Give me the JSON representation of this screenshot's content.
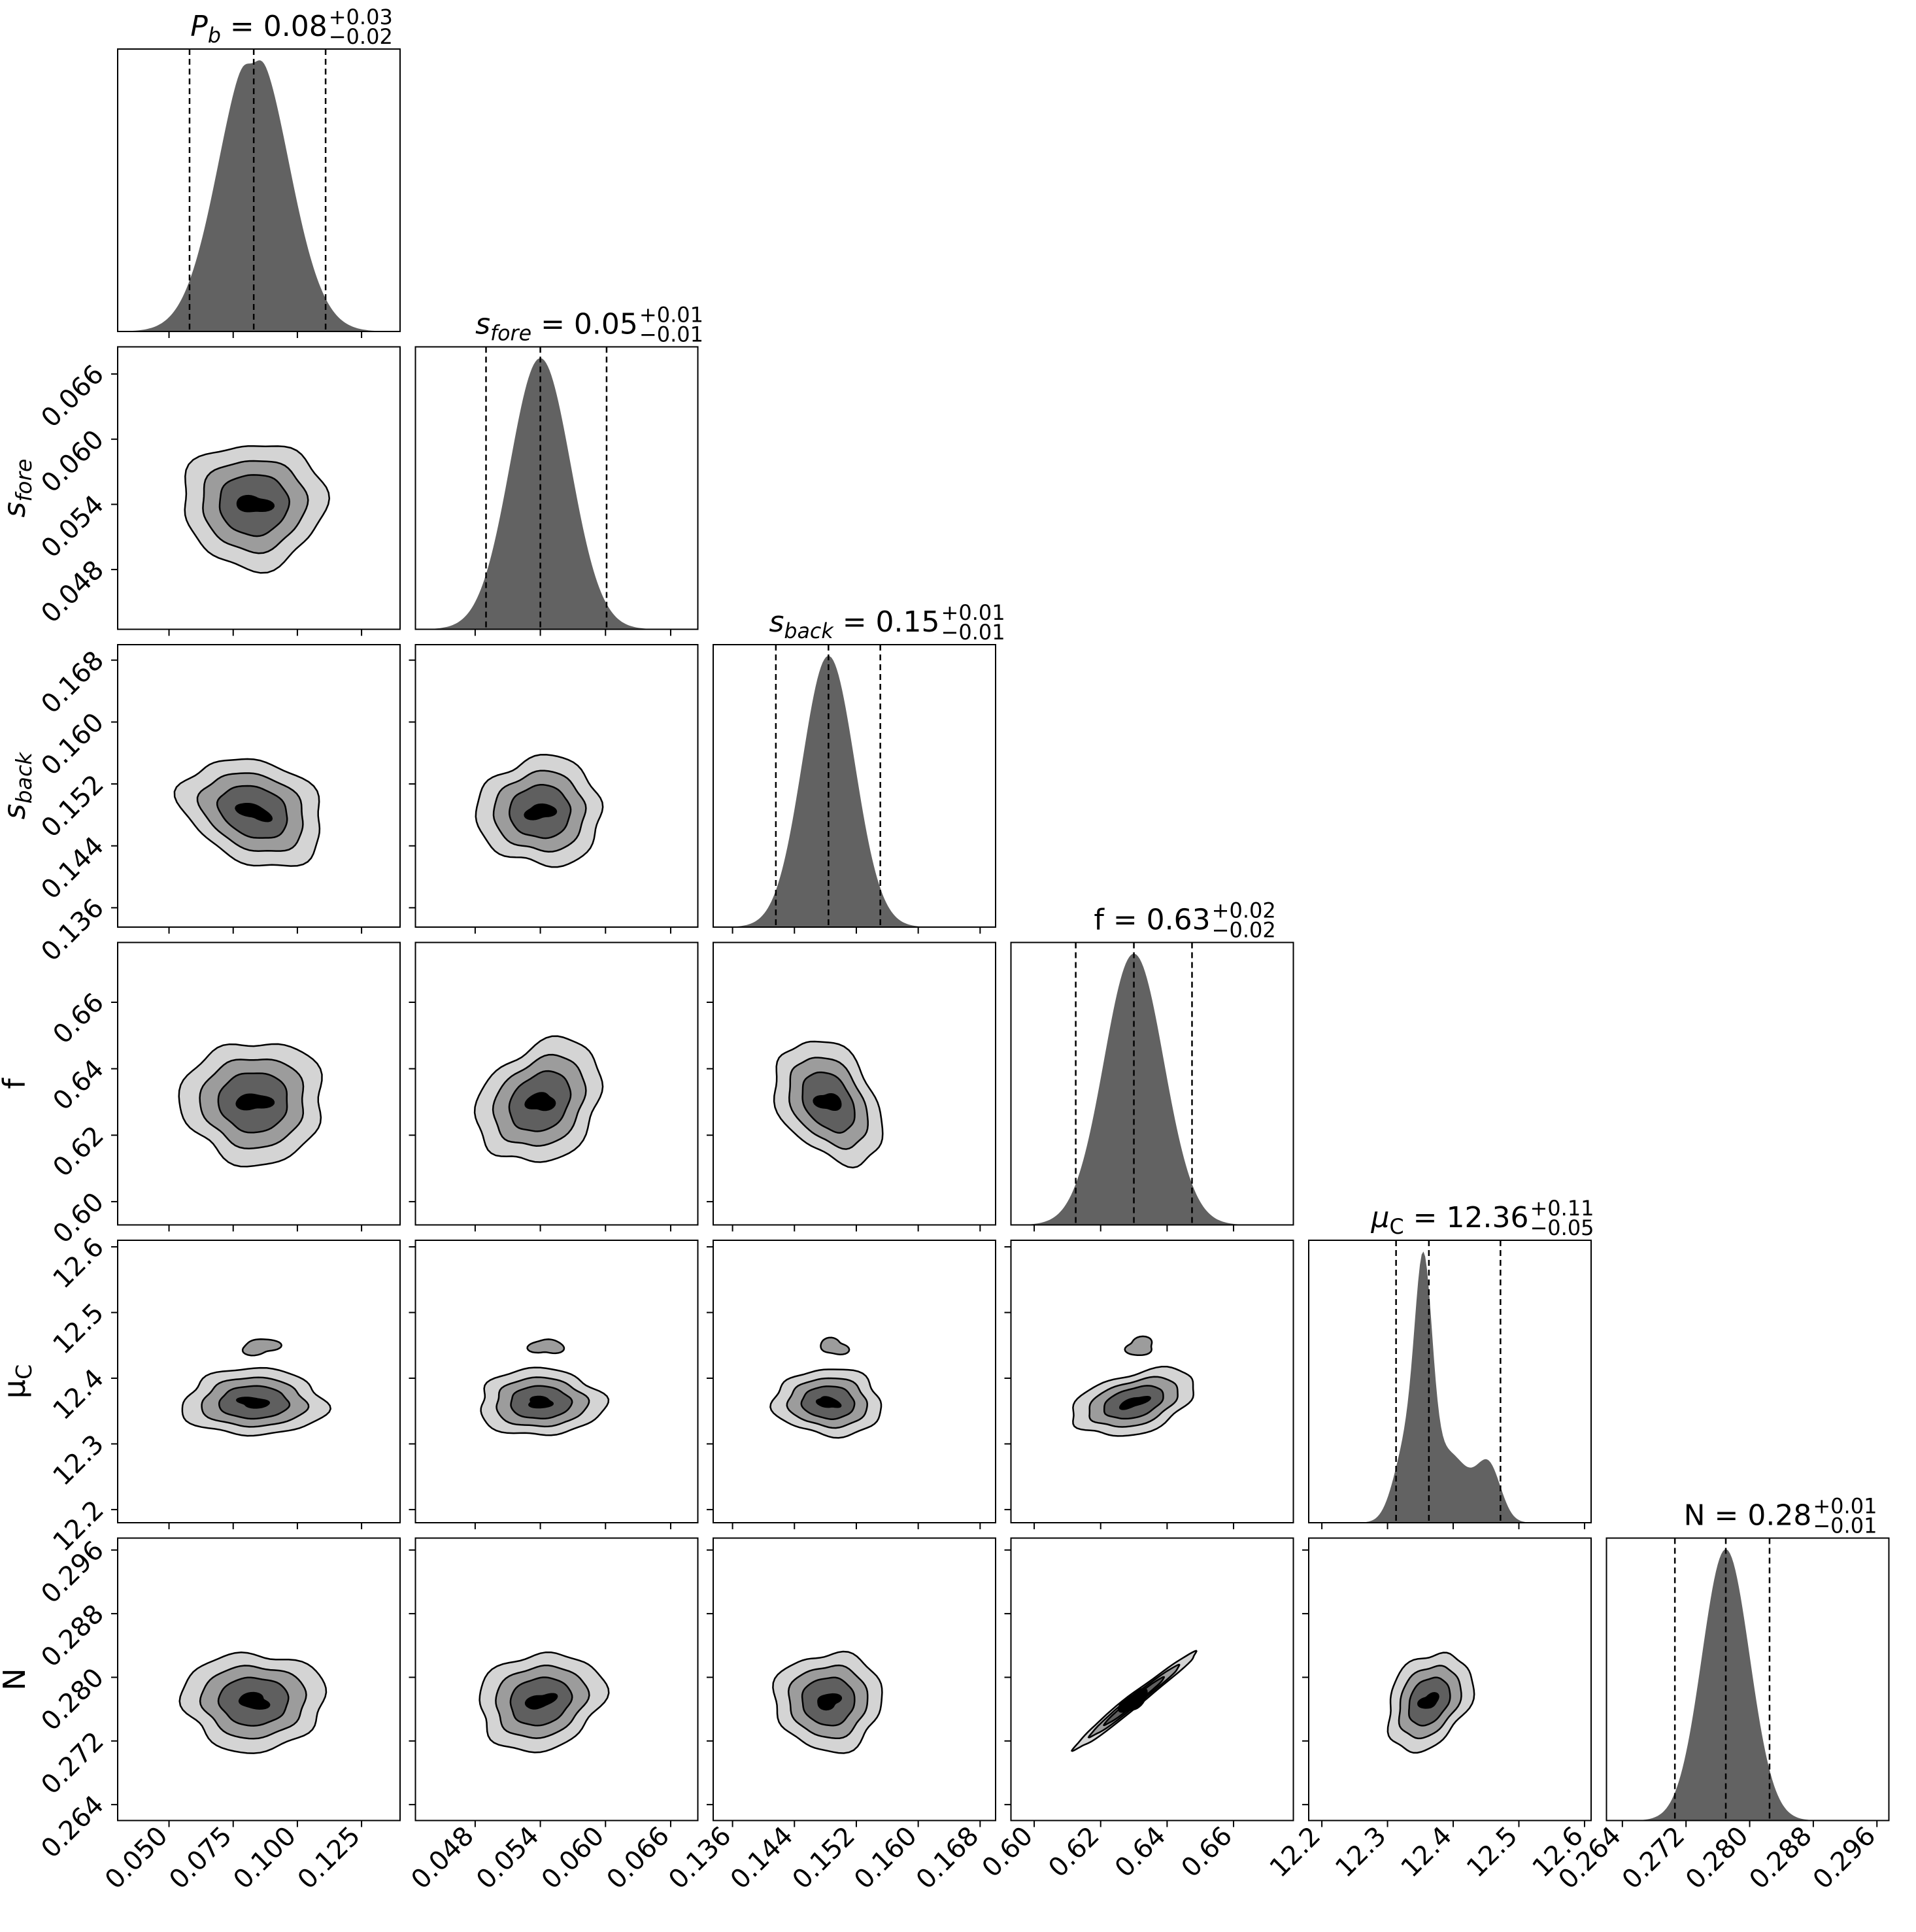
{
  "chart_data": {
    "type": "corner",
    "params": [
      {
        "key": "Pb",
        "label": "P_b",
        "label_parts": {
          "main": "P",
          "sub": "b"
        },
        "ticks": [
          "0.050",
          "0.075",
          "0.100",
          "0.125"
        ],
        "tick_values": [
          0.05,
          0.075,
          0.1,
          0.125
        ],
        "range": [
          0.03,
          0.14
        ],
        "title": {
          "value": "0.08",
          "plus": "+0.03",
          "minus": "−0.02"
        },
        "quantiles": [
          0.058,
          0.083,
          0.111
        ],
        "median": 0.083,
        "sd": 0.0135
      },
      {
        "key": "sfore",
        "label": "s_fore",
        "label_parts": {
          "main": "s",
          "sub": "fore"
        },
        "ticks": [
          "0.048",
          "0.054",
          "0.060",
          "0.066"
        ],
        "tick_values": [
          0.048,
          0.054,
          0.06,
          0.066
        ],
        "range": [
          0.0425,
          0.0685
        ],
        "title": {
          "value": "0.05",
          "plus": "+0.01",
          "minus": "−0.01"
        },
        "quantiles": [
          0.049,
          0.054,
          0.0601
        ],
        "median": 0.054,
        "sd": 0.0028
      },
      {
        "key": "sback",
        "label": "s_back",
        "label_parts": {
          "main": "s",
          "sub": "back"
        },
        "ticks": [
          "0.136",
          "0.144",
          "0.152",
          "0.160",
          "0.168"
        ],
        "tick_values": [
          0.136,
          0.144,
          0.152,
          0.16,
          0.168
        ],
        "range": [
          0.1335,
          0.17
        ],
        "title": {
          "value": "0.15",
          "plus": "+0.01",
          "minus": "−0.01"
        },
        "quantiles": [
          0.1416,
          0.1484,
          0.1551
        ],
        "median": 0.1484,
        "sd": 0.0034
      },
      {
        "key": "f",
        "label": "f",
        "label_parts": {
          "main": "f",
          "sub": ""
        },
        "ticks": [
          "0.60",
          "0.62",
          "0.64",
          "0.66"
        ],
        "tick_values": [
          0.6,
          0.62,
          0.64,
          0.66
        ],
        "range": [
          0.593,
          0.678
        ],
        "title": {
          "value": "0.63",
          "plus": "+0.02",
          "minus": "−0.02"
        },
        "quantiles": [
          0.6125,
          0.63,
          0.6475
        ],
        "median": 0.63,
        "sd": 0.009
      },
      {
        "key": "muC",
        "label": "μ_C",
        "label_parts": {
          "main": "μ",
          "sub": "C"
        },
        "ticks": [
          "12.2",
          "12.3",
          "12.4",
          "12.5",
          "12.6"
        ],
        "tick_values": [
          12.2,
          12.3,
          12.4,
          12.5,
          12.6
        ],
        "range": [
          12.18,
          12.61
        ],
        "title": {
          "value": "12.36",
          "plus": "+0.11",
          "minus": "−0.05"
        },
        "quantiles": [
          12.313,
          12.363,
          12.472
        ],
        "median": 12.363,
        "sd": 0.045
      },
      {
        "key": "N",
        "label": "N",
        "label_parts": {
          "main": "N",
          "sub": ""
        },
        "ticks": [
          "0.264",
          "0.272",
          "0.280",
          "0.288",
          "0.296"
        ],
        "tick_values": [
          0.264,
          0.272,
          0.28,
          0.288,
          0.296
        ],
        "range": [
          0.262,
          0.2975
        ],
        "title": {
          "value": "0.28",
          "plus": "+0.01",
          "minus": "−0.01"
        },
        "quantiles": [
          0.2706,
          0.277,
          0.2825
        ],
        "median": 0.277,
        "sd": 0.003
      }
    ],
    "correlations": {
      "Pb-sback": -0.25,
      "sfore-f": 0.25,
      "sback-f": -0.35,
      "sback-muC": -0.05,
      "f-muC": 0.4,
      "f-N": 0.985,
      "muC-N": 0.3,
      "sfore-N": 0.15
    },
    "contour_levels": [
      "0.5 sigma",
      "1 sigma",
      "1.5 sigma",
      "2 sigma"
    ],
    "fill_colors": [
      "#000000",
      "#5f5f5f",
      "#9c9c9c",
      "#d4d4d4"
    ],
    "hist_color": "#626262",
    "quantile_line_style": "dashed black",
    "grid": false,
    "legend": "none"
  }
}
